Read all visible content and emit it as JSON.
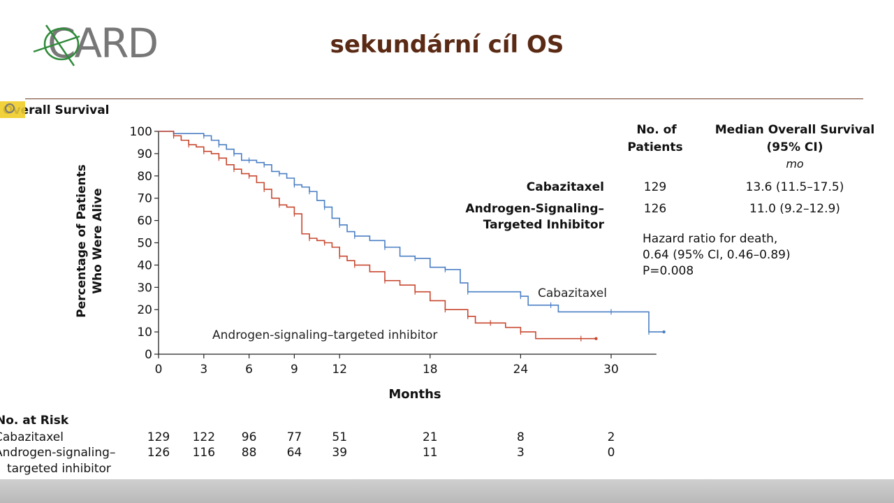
{
  "slide": {
    "logo_text": "CARD",
    "title": "sekundární cíl OS"
  },
  "colors": {
    "title": "#5a2a14",
    "rule": "#6b3a22",
    "cabazitaxel": "#4a7fc4",
    "arsi": "#c8472f",
    "logo_green": "#2f8a3a",
    "logo_gray": "#777777"
  },
  "chart_data": {
    "type": "line",
    "title": "Overall Survival",
    "xlabel": "Months",
    "ylabel_line1": "Percentage of Patients",
    "ylabel_line2": "Who Were Alive",
    "xlim": [
      0,
      33
    ],
    "ylim": [
      0,
      100
    ],
    "xticks": [
      0,
      3,
      6,
      9,
      12,
      18,
      24,
      30
    ],
    "yticks": [
      0,
      10,
      20,
      30,
      40,
      50,
      60,
      70,
      80,
      90,
      100
    ],
    "series": [
      {
        "name": "Cabazitaxel",
        "color": "#4a7fc4",
        "x": [
          0,
          1,
          2,
          3,
          3.5,
          4,
          4.5,
          5,
          5.5,
          6,
          6.5,
          7,
          7.5,
          8,
          8.5,
          9,
          9.5,
          10,
          10.5,
          11,
          11.5,
          12,
          12.5,
          13,
          14,
          15,
          16,
          17,
          18,
          19,
          20,
          20.5,
          23,
          24,
          24.5,
          26,
          26.5,
          30,
          32,
          32.5,
          33.5
        ],
        "y": [
          100,
          99,
          99,
          98,
          96,
          94,
          92,
          90,
          87,
          87,
          86,
          85,
          82,
          81,
          79,
          76,
          75,
          73,
          69,
          66,
          61,
          58,
          55,
          53,
          51,
          48,
          44,
          43,
          39,
          38,
          32,
          28,
          28,
          26,
          22,
          22,
          19,
          19,
          19,
          10,
          10
        ]
      },
      {
        "name": "Androgen-signaling–targeted inhibitor",
        "color": "#c8472f",
        "x": [
          0,
          1,
          1.5,
          2,
          2.5,
          3,
          3.5,
          4,
          4.5,
          5,
          5.5,
          6,
          6.5,
          7,
          7.5,
          8,
          8.5,
          9,
          9.5,
          10,
          10.5,
          11,
          11.5,
          12,
          12.5,
          13,
          14,
          15,
          16,
          17,
          18,
          19,
          20,
          20.5,
          21,
          22,
          23,
          24,
          25,
          28,
          29
        ],
        "y": [
          100,
          98,
          96,
          94,
          93,
          91,
          90,
          88,
          85,
          83,
          81,
          80,
          77,
          74,
          70,
          67,
          66,
          63,
          54,
          52,
          51,
          50,
          48,
          44,
          42,
          40,
          37,
          33,
          31,
          28,
          24,
          20,
          20,
          17,
          14,
          14,
          12,
          10,
          7,
          7,
          7
        ]
      }
    ],
    "curve_labels": {
      "cabazitaxel": "Cabazitaxel",
      "arsi": "Androgen-signaling–targeted inhibitor"
    },
    "table": {
      "col_patients_1": "No. of",
      "col_patients_2": "Patients",
      "col_median_1": "Median Overall Survival",
      "col_median_2": "(95% CI)",
      "col_median_3": "mo",
      "rows": [
        {
          "label": "Cabazitaxel",
          "patients": "129",
          "median": "13.6 (11.5–17.5)"
        },
        {
          "label_1": "Androgen-Signaling–",
          "label_2": "Targeted Inhibitor",
          "patients": "126",
          "median": "11.0 (9.2–12.9)"
        }
      ]
    },
    "hazard": {
      "line1": "Hazard ratio for death,",
      "line2": "0.64 (95% CI, 0.46–0.89)",
      "line3": "P=0.008"
    },
    "at_risk": {
      "heading": "No. at Risk",
      "rows": [
        {
          "label_1": "Cabazitaxel",
          "values": [
            "129",
            "122",
            "96",
            "77",
            "51",
            "21",
            "8",
            "2"
          ]
        },
        {
          "label_1": "Androgen-signaling–",
          "label_2": "targeted inhibitor",
          "values": [
            "126",
            "116",
            "88",
            "64",
            "39",
            "11",
            "3",
            "0"
          ]
        }
      ]
    }
  }
}
